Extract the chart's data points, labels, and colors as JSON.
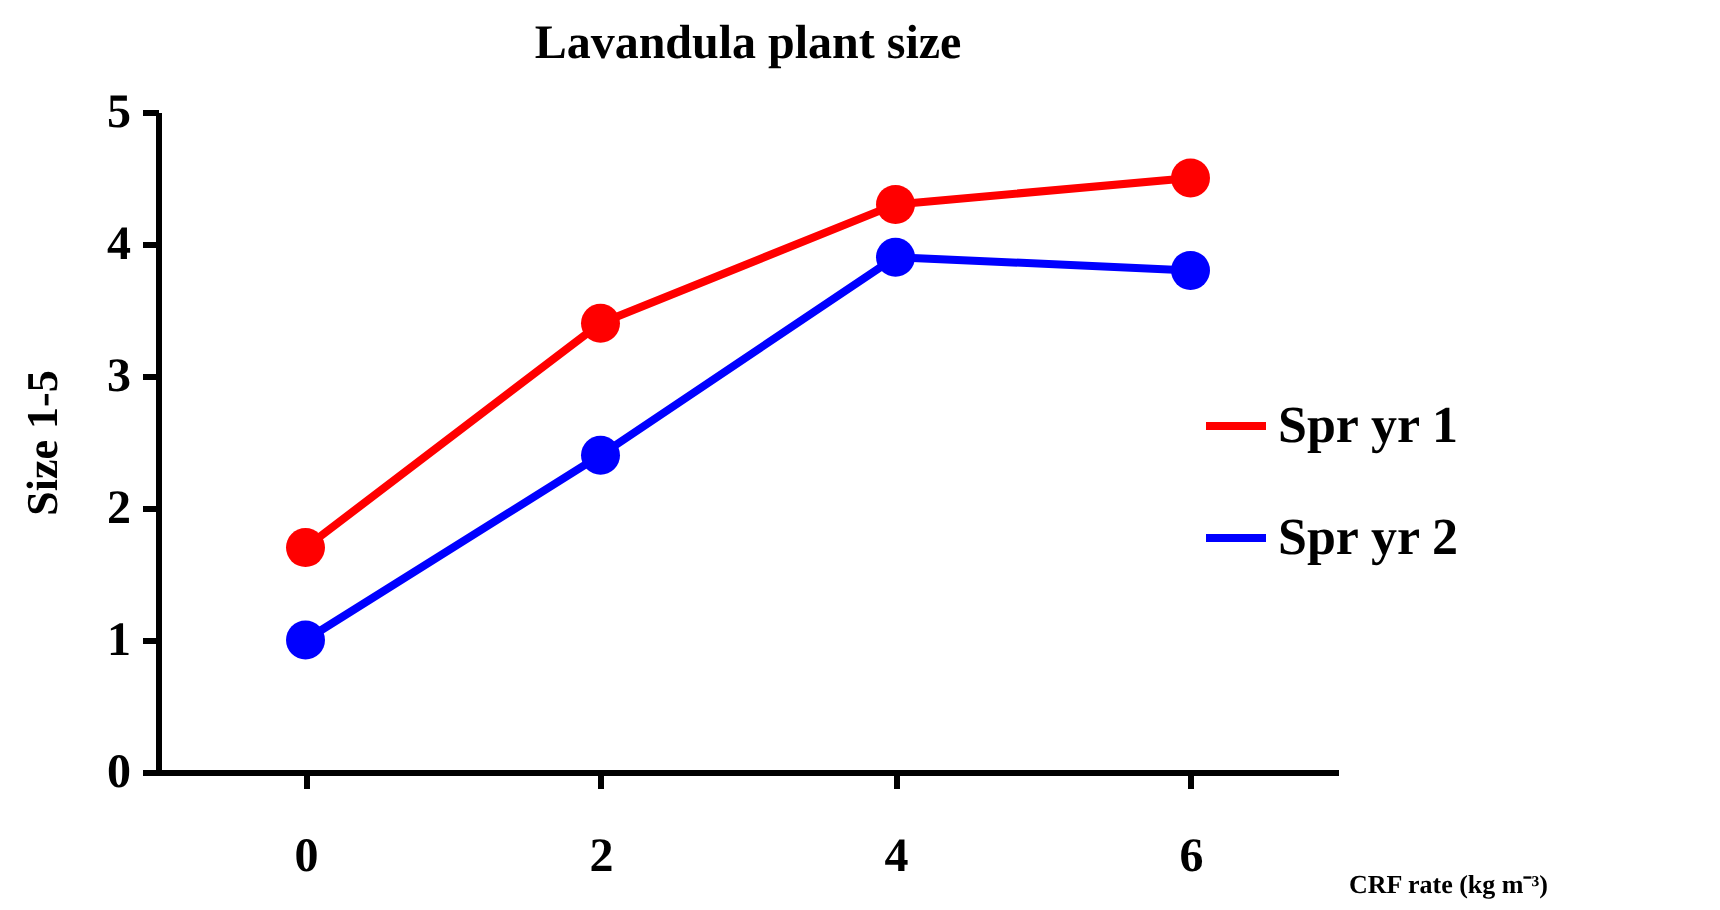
{
  "chart_data": {
    "type": "line",
    "title": "Lavandula plant size",
    "xlabel": "CRF rate (kg m⁻³)",
    "ylabel": "Size 1-5",
    "categories": [
      "0",
      "2",
      "4",
      "6"
    ],
    "series": [
      {
        "name": "Spr yr 1",
        "color": "#ff0000",
        "values": [
          1.7,
          3.4,
          4.3,
          4.5
        ]
      },
      {
        "name": "Spr yr 2",
        "color": "#0000ff",
        "values": [
          1.0,
          2.4,
          3.9,
          3.8
        ]
      }
    ],
    "ylim": [
      0,
      5
    ],
    "yticks": [
      0,
      1,
      2,
      3,
      4,
      5
    ],
    "grid": false,
    "legend": "right",
    "marker": "circle",
    "line_style": "solid"
  }
}
